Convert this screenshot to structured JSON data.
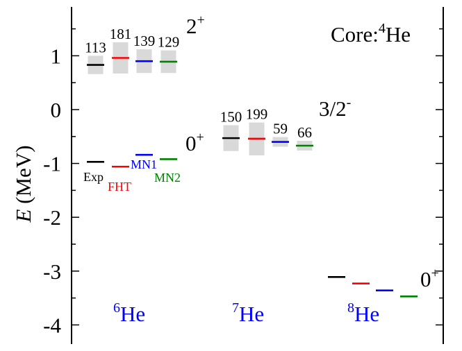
{
  "colors": {
    "Exp": "#000000",
    "FHT": "#ff0000",
    "MN1": "#0000ff",
    "MN2": "#008000",
    "width_box": "#d9d9d9",
    "nucleus_label": "#0000ff",
    "axis": "#000000"
  },
  "chart_data": {
    "type": "level-scheme",
    "ylabel_italic": "E",
    "ylabel_unit": " (MeV)",
    "ylim": [
      -4.4,
      1.9
    ],
    "yticks": [
      1,
      0,
      -1,
      -2,
      -3,
      -4
    ],
    "ytick_labels": [
      "1",
      "0",
      "-1",
      "-2",
      "-3",
      "-4"
    ],
    "annotation": {
      "prefix": "Core:",
      "sup": "4",
      "suffix": "He"
    },
    "method_labels": {
      "Exp": "Exp",
      "FHT": "FHT",
      "MN1": "MN1",
      "MN2": "MN2"
    },
    "nuclei": [
      {
        "sup": "6",
        "name": "He",
        "states": [
          {
            "spin": "2",
            "parity": "+",
            "levels": [
              {
                "method": "Exp",
                "E": 0.83,
                "width": 113,
                "width_range": [
                  0.66,
                  1.0
                ]
              },
              {
                "method": "FHT",
                "E": 0.96,
                "width": 181,
                "width_range": [
                  0.67,
                  1.25
                ]
              },
              {
                "method": "MN1",
                "E": 0.9,
                "width": 139,
                "width_range": [
                  0.68,
                  1.12
                ]
              },
              {
                "method": "MN2",
                "E": 0.89,
                "width": 129,
                "width_range": [
                  0.68,
                  1.1
                ]
              }
            ]
          },
          {
            "spin": "0",
            "parity": "+",
            "levels": [
              {
                "method": "Exp",
                "E": -0.97
              },
              {
                "method": "FHT",
                "E": -1.06
              },
              {
                "method": "MN1",
                "E": -0.84
              },
              {
                "method": "MN2",
                "E": -0.92
              }
            ]
          }
        ]
      },
      {
        "sup": "7",
        "name": "He",
        "states": [
          {
            "spin": "3/2",
            "parity": "-",
            "levels": [
              {
                "method": "Exp",
                "E": -0.53,
                "width": 150,
                "width_range": [
                  -0.77,
                  -0.29
                ]
              },
              {
                "method": "FHT",
                "E": -0.54,
                "width": 199,
                "width_range": [
                  -0.85,
                  -0.24
                ]
              },
              {
                "method": "MN1",
                "E": -0.6,
                "width": 59,
                "width_range": [
                  -0.69,
                  -0.51
                ]
              },
              {
                "method": "MN2",
                "E": -0.67,
                "width": 66,
                "width_range": [
                  -0.76,
                  -0.58
                ]
              }
            ]
          }
        ]
      },
      {
        "sup": "8",
        "name": "He",
        "states": [
          {
            "spin": "0",
            "parity": "+",
            "levels": [
              {
                "method": "Exp",
                "E": -3.11
              },
              {
                "method": "FHT",
                "E": -3.23
              },
              {
                "method": "MN1",
                "E": -3.36
              },
              {
                "method": "MN2",
                "E": -3.47
              }
            ]
          }
        ]
      }
    ]
  }
}
